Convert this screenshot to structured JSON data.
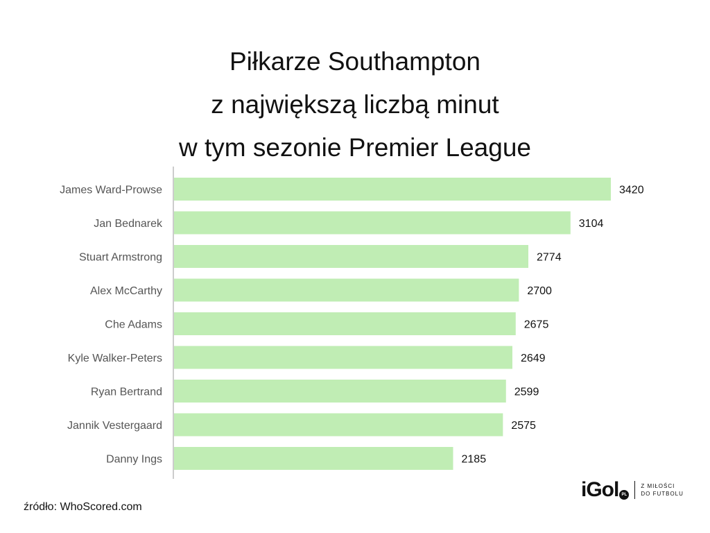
{
  "title_lines": [
    "Piłkarze Southampton",
    "z największą liczbą minut",
    "w tym sezonie Premier League"
  ],
  "source": "źródło: WhoScored.com",
  "brand": {
    "name": "iGol",
    "badge": "PL",
    "tagline_line1": "Z MIŁOŚCI",
    "tagline_line2": "DO FUTBOLU"
  },
  "colors": {
    "bar": "#c0edb4",
    "axis": "#cccccc"
  },
  "chart_data": {
    "type": "bar",
    "orientation": "horizontal",
    "title": "Piłkarze Southampton z największą liczbą minut w tym sezonie Premier League",
    "categories": [
      "James Ward-Prowse",
      "Jan Bednarek",
      "Stuart Armstrong",
      "Alex McCarthy",
      "Che Adams",
      "Kyle Walker-Peters",
      "Ryan Bertrand",
      "Jannik Vestergaard",
      "Danny Ings"
    ],
    "values": [
      3420,
      3104,
      2774,
      2700,
      2675,
      2649,
      2599,
      2575,
      2185
    ],
    "xlim": [
      0,
      3420
    ],
    "grid": false,
    "legend": "none"
  }
}
